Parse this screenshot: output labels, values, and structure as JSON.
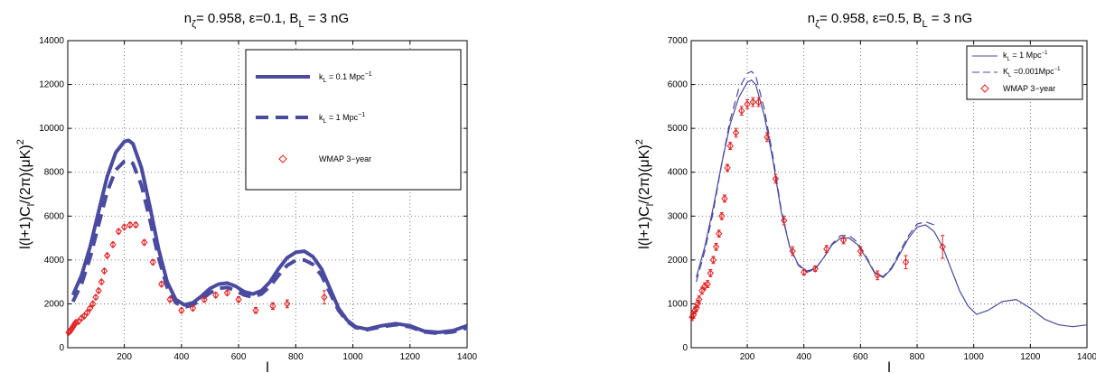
{
  "colors": {
    "model": "#4a4aa0",
    "data": "#e02020",
    "axis": "#000000",
    "grid": "#555555"
  },
  "chart_data": [
    {
      "type": "line",
      "title": {
        "main": "n",
        "sub": "ζ",
        "rest": "= 0.958, ε=0.1, B",
        "sub2": "L",
        "rest2": " = 3 nG"
      },
      "xlabel": "l",
      "ylabel": "l(l+1)C_l/(2π)(μK)²",
      "ylabel_parts": {
        "a": "l(l+1)C",
        "b": "l",
        "c": "/(2π)(μK)",
        "d": "2"
      },
      "xlim": [
        2,
        1400
      ],
      "ylim": [
        0,
        14000
      ],
      "xticks": [
        200,
        400,
        600,
        800,
        1000,
        1200,
        1400
      ],
      "yticks": [
        0,
        2000,
        4000,
        6000,
        8000,
        10000,
        12000,
        14000
      ],
      "grid": true,
      "legend_position": "top-right",
      "legend": [
        {
          "label_main": "k",
          "label_sub": "L",
          "label_rest": " =  0.1 Mpc",
          "label_sup": "−1",
          "style": "thick-solid"
        },
        {
          "label_main": "k",
          "label_sub": "L",
          "label_rest": " = 1 Mpc",
          "label_sup": "−1",
          "style": "thick-dashed"
        },
        {
          "label_main": "WMAP 3−year",
          "label_sub": "",
          "label_rest": "",
          "label_sup": "",
          "style": "diamond"
        }
      ],
      "series": [
        {
          "style": "thick-solid",
          "x": [
            20,
            50,
            80,
            110,
            140,
            170,
            200,
            215,
            230,
            260,
            290,
            320,
            350,
            380,
            410,
            440,
            470,
            500,
            530,
            560,
            590,
            620,
            650,
            680,
            710,
            740,
            770,
            800,
            830,
            860,
            890,
            920,
            950,
            980,
            1010,
            1050,
            1100,
            1150,
            1200,
            1250,
            1300,
            1350,
            1400
          ],
          "y": [
            2400,
            3300,
            4600,
            6200,
            7800,
            8900,
            9400,
            9450,
            9300,
            8200,
            6400,
            4500,
            3000,
            2200,
            1950,
            2050,
            2350,
            2700,
            2900,
            2950,
            2800,
            2550,
            2450,
            2600,
            3000,
            3600,
            4100,
            4350,
            4400,
            4150,
            3600,
            2700,
            1800,
            1250,
            950,
            850,
            1000,
            1100,
            1000,
            750,
            700,
            780,
            1000
          ]
        },
        {
          "style": "thick-dashed",
          "x": [
            20,
            50,
            80,
            110,
            140,
            170,
            200,
            215,
            230,
            260,
            290,
            320,
            350,
            380,
            410,
            440,
            470,
            500,
            530,
            560,
            590,
            620,
            650,
            680,
            710,
            740,
            770,
            800,
            830,
            860,
            890,
            920,
            950,
            980,
            1010,
            1050,
            1100,
            1150,
            1200,
            1250,
            1300,
            1350,
            1400
          ],
          "y": [
            2100,
            2900,
            4100,
            5600,
            7100,
            8100,
            8500,
            8550,
            8400,
            7400,
            5800,
            4100,
            2750,
            2050,
            1850,
            1950,
            2200,
            2500,
            2700,
            2750,
            2600,
            2400,
            2300,
            2450,
            2800,
            3300,
            3750,
            3980,
            4000,
            3800,
            3300,
            2500,
            1700,
            1200,
            920,
            820,
            950,
            1050,
            950,
            720,
            650,
            720,
            900
          ]
        }
      ],
      "points": {
        "x": [
          5,
          10,
          15,
          20,
          25,
          30,
          40,
          50,
          60,
          70,
          80,
          90,
          100,
          110,
          120,
          130,
          140,
          160,
          180,
          200,
          220,
          240,
          270,
          300,
          330,
          360,
          400,
          440,
          480,
          520,
          560,
          600,
          660,
          720,
          770,
          900
        ],
        "y": [
          700,
          750,
          850,
          950,
          1050,
          1150,
          1200,
          1350,
          1450,
          1600,
          1800,
          2000,
          2300,
          2600,
          3000,
          3500,
          4200,
          4700,
          5300,
          5500,
          5600,
          5600,
          4800,
          3900,
          2900,
          2200,
          1700,
          1800,
          2200,
          2400,
          2500,
          2200,
          1700,
          1900,
          2000,
          2300
        ],
        "err": [
          80,
          80,
          80,
          80,
          80,
          80,
          80,
          80,
          80,
          80,
          80,
          80,
          80,
          80,
          80,
          80,
          80,
          90,
          90,
          90,
          100,
          100,
          100,
          100,
          100,
          100,
          100,
          100,
          100,
          100,
          100,
          120,
          130,
          150,
          180,
          300
        ]
      }
    },
    {
      "type": "line",
      "title": {
        "main": "n",
        "sub": "ζ",
        "rest": "= 0.958, ε=0.5, B",
        "sub2": "L",
        "rest2": " = 3 nG"
      },
      "xlabel": "l",
      "ylabel": "l(l+1)C_l/(2π)(μK)²",
      "ylabel_parts": {
        "a": "l(l+1)C",
        "b": "l",
        "c": "/(2π)(μK)",
        "d": "2"
      },
      "xlim": [
        2,
        1400
      ],
      "ylim": [
        0,
        7000
      ],
      "xticks": [
        200,
        400,
        600,
        800,
        1000,
        1200,
        1400
      ],
      "yticks": [
        0,
        1000,
        2000,
        3000,
        4000,
        5000,
        6000,
        7000
      ],
      "grid": true,
      "legend_position": "top-right",
      "legend": [
        {
          "label_main": "k",
          "label_sub": "L",
          "label_rest": " = 1 Mpc",
          "label_sup": "−1",
          "style": "thin-solid"
        },
        {
          "label_main": "K",
          "label_sub": "L",
          "label_rest": " =0.001Mpc",
          "label_sup": "−1",
          "style": "thin-dashed"
        },
        {
          "label_main": "WMAP 3−year",
          "label_sub": "",
          "label_rest": "",
          "label_sup": "",
          "style": "diamond"
        }
      ],
      "series": [
        {
          "style": "thin-solid",
          "x": [
            20,
            50,
            80,
            110,
            140,
            170,
            200,
            215,
            230,
            260,
            290,
            320,
            350,
            380,
            410,
            440,
            470,
            500,
            530,
            560,
            590,
            620,
            650,
            680,
            710,
            740,
            770,
            800,
            830,
            860,
            890,
            920,
            950,
            980,
            1010,
            1050,
            1100,
            1150,
            1200,
            1250,
            1300,
            1350,
            1400
          ],
          "y": [
            1600,
            2300,
            3200,
            4200,
            5100,
            5700,
            6050,
            6100,
            6000,
            5300,
            4300,
            3100,
            2300,
            1900,
            1750,
            1800,
            2050,
            2350,
            2500,
            2500,
            2350,
            2050,
            1700,
            1600,
            1800,
            2150,
            2500,
            2750,
            2800,
            2650,
            2300,
            1800,
            1300,
            950,
            760,
            850,
            1050,
            1100,
            900,
            650,
            520,
            480,
            520
          ]
        },
        {
          "style": "thin-dashed",
          "x": [
            20,
            50,
            80,
            110,
            140,
            170,
            200,
            215,
            230,
            260,
            290,
            320,
            350,
            380,
            410,
            440,
            470,
            500,
            530,
            560,
            590,
            620,
            650,
            680,
            710,
            740,
            770,
            800,
            830,
            860
          ],
          "y": [
            1500,
            2200,
            3100,
            4200,
            5200,
            5900,
            6250,
            6300,
            6200,
            5450,
            4400,
            3150,
            2300,
            1880,
            1720,
            1790,
            2050,
            2370,
            2560,
            2560,
            2400,
            2080,
            1720,
            1620,
            1830,
            2200,
            2560,
            2820,
            2870,
            2800
          ]
        }
      ],
      "points": {
        "x": [
          5,
          10,
          15,
          20,
          25,
          30,
          40,
          50,
          60,
          70,
          80,
          90,
          100,
          110,
          120,
          130,
          140,
          160,
          180,
          200,
          220,
          240,
          270,
          300,
          330,
          360,
          400,
          440,
          480,
          540,
          600,
          660,
          760,
          890
        ],
        "y": [
          700,
          750,
          850,
          900,
          1000,
          1100,
          1300,
          1400,
          1450,
          1700,
          2000,
          2300,
          2600,
          3000,
          3400,
          4100,
          4600,
          4900,
          5400,
          5550,
          5600,
          5600,
          4800,
          3850,
          2900,
          2200,
          1720,
          1800,
          2250,
          2450,
          2200,
          1650,
          1950,
          2300
        ],
        "err": [
          80,
          80,
          80,
          80,
          80,
          80,
          80,
          80,
          80,
          80,
          80,
          80,
          80,
          80,
          80,
          80,
          80,
          100,
          100,
          100,
          100,
          100,
          100,
          100,
          100,
          100,
          60,
          60,
          80,
          80,
          100,
          100,
          150,
          260
        ]
      }
    }
  ]
}
